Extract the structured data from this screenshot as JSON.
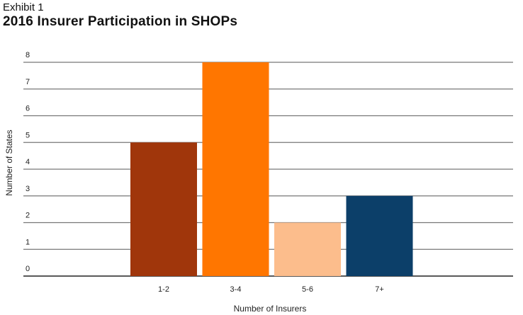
{
  "header": {
    "exhibit": "Exhibit 1",
    "title": "2016 Insurer Participation in SHOPs"
  },
  "chart_data": {
    "type": "bar",
    "title": "2016 Insurer Participation in SHOPs",
    "xlabel": "Number of Insurers",
    "ylabel": "Number of States",
    "categories": [
      "1-2",
      "3-4",
      "5-6",
      "7+"
    ],
    "values": [
      5,
      8,
      2,
      3
    ],
    "colors": [
      "#a0360b",
      "#ff7600",
      "#fcbd8c",
      "#0c3f69"
    ],
    "ylim": [
      0,
      8
    ],
    "yticks": [
      0,
      1,
      2,
      3,
      4,
      5,
      6,
      7,
      8
    ],
    "grid": true,
    "legend": "none"
  }
}
